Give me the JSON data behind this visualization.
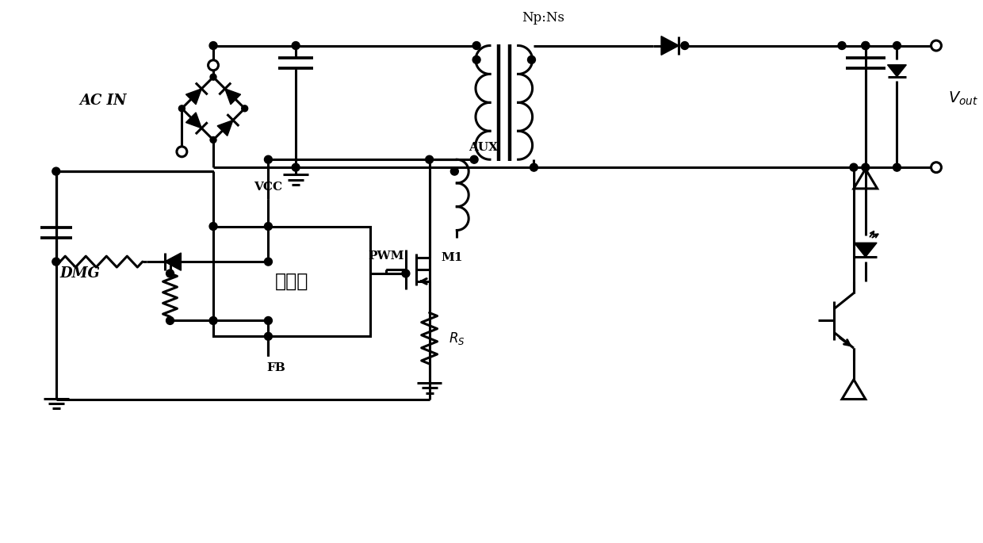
{
  "bg": "#ffffff",
  "lc": "#000000",
  "lw": 2.2,
  "labels": {
    "ac_in": "AC IN",
    "np_ns": "Np:Ns",
    "vout": "$V_{out}$",
    "vcc": "VCC",
    "fb": "FB",
    "pwm": "PWM",
    "m1": "M1",
    "rs": "$R_S$",
    "dmg": "DMG",
    "aux": "AUX",
    "controller": "控制器"
  }
}
